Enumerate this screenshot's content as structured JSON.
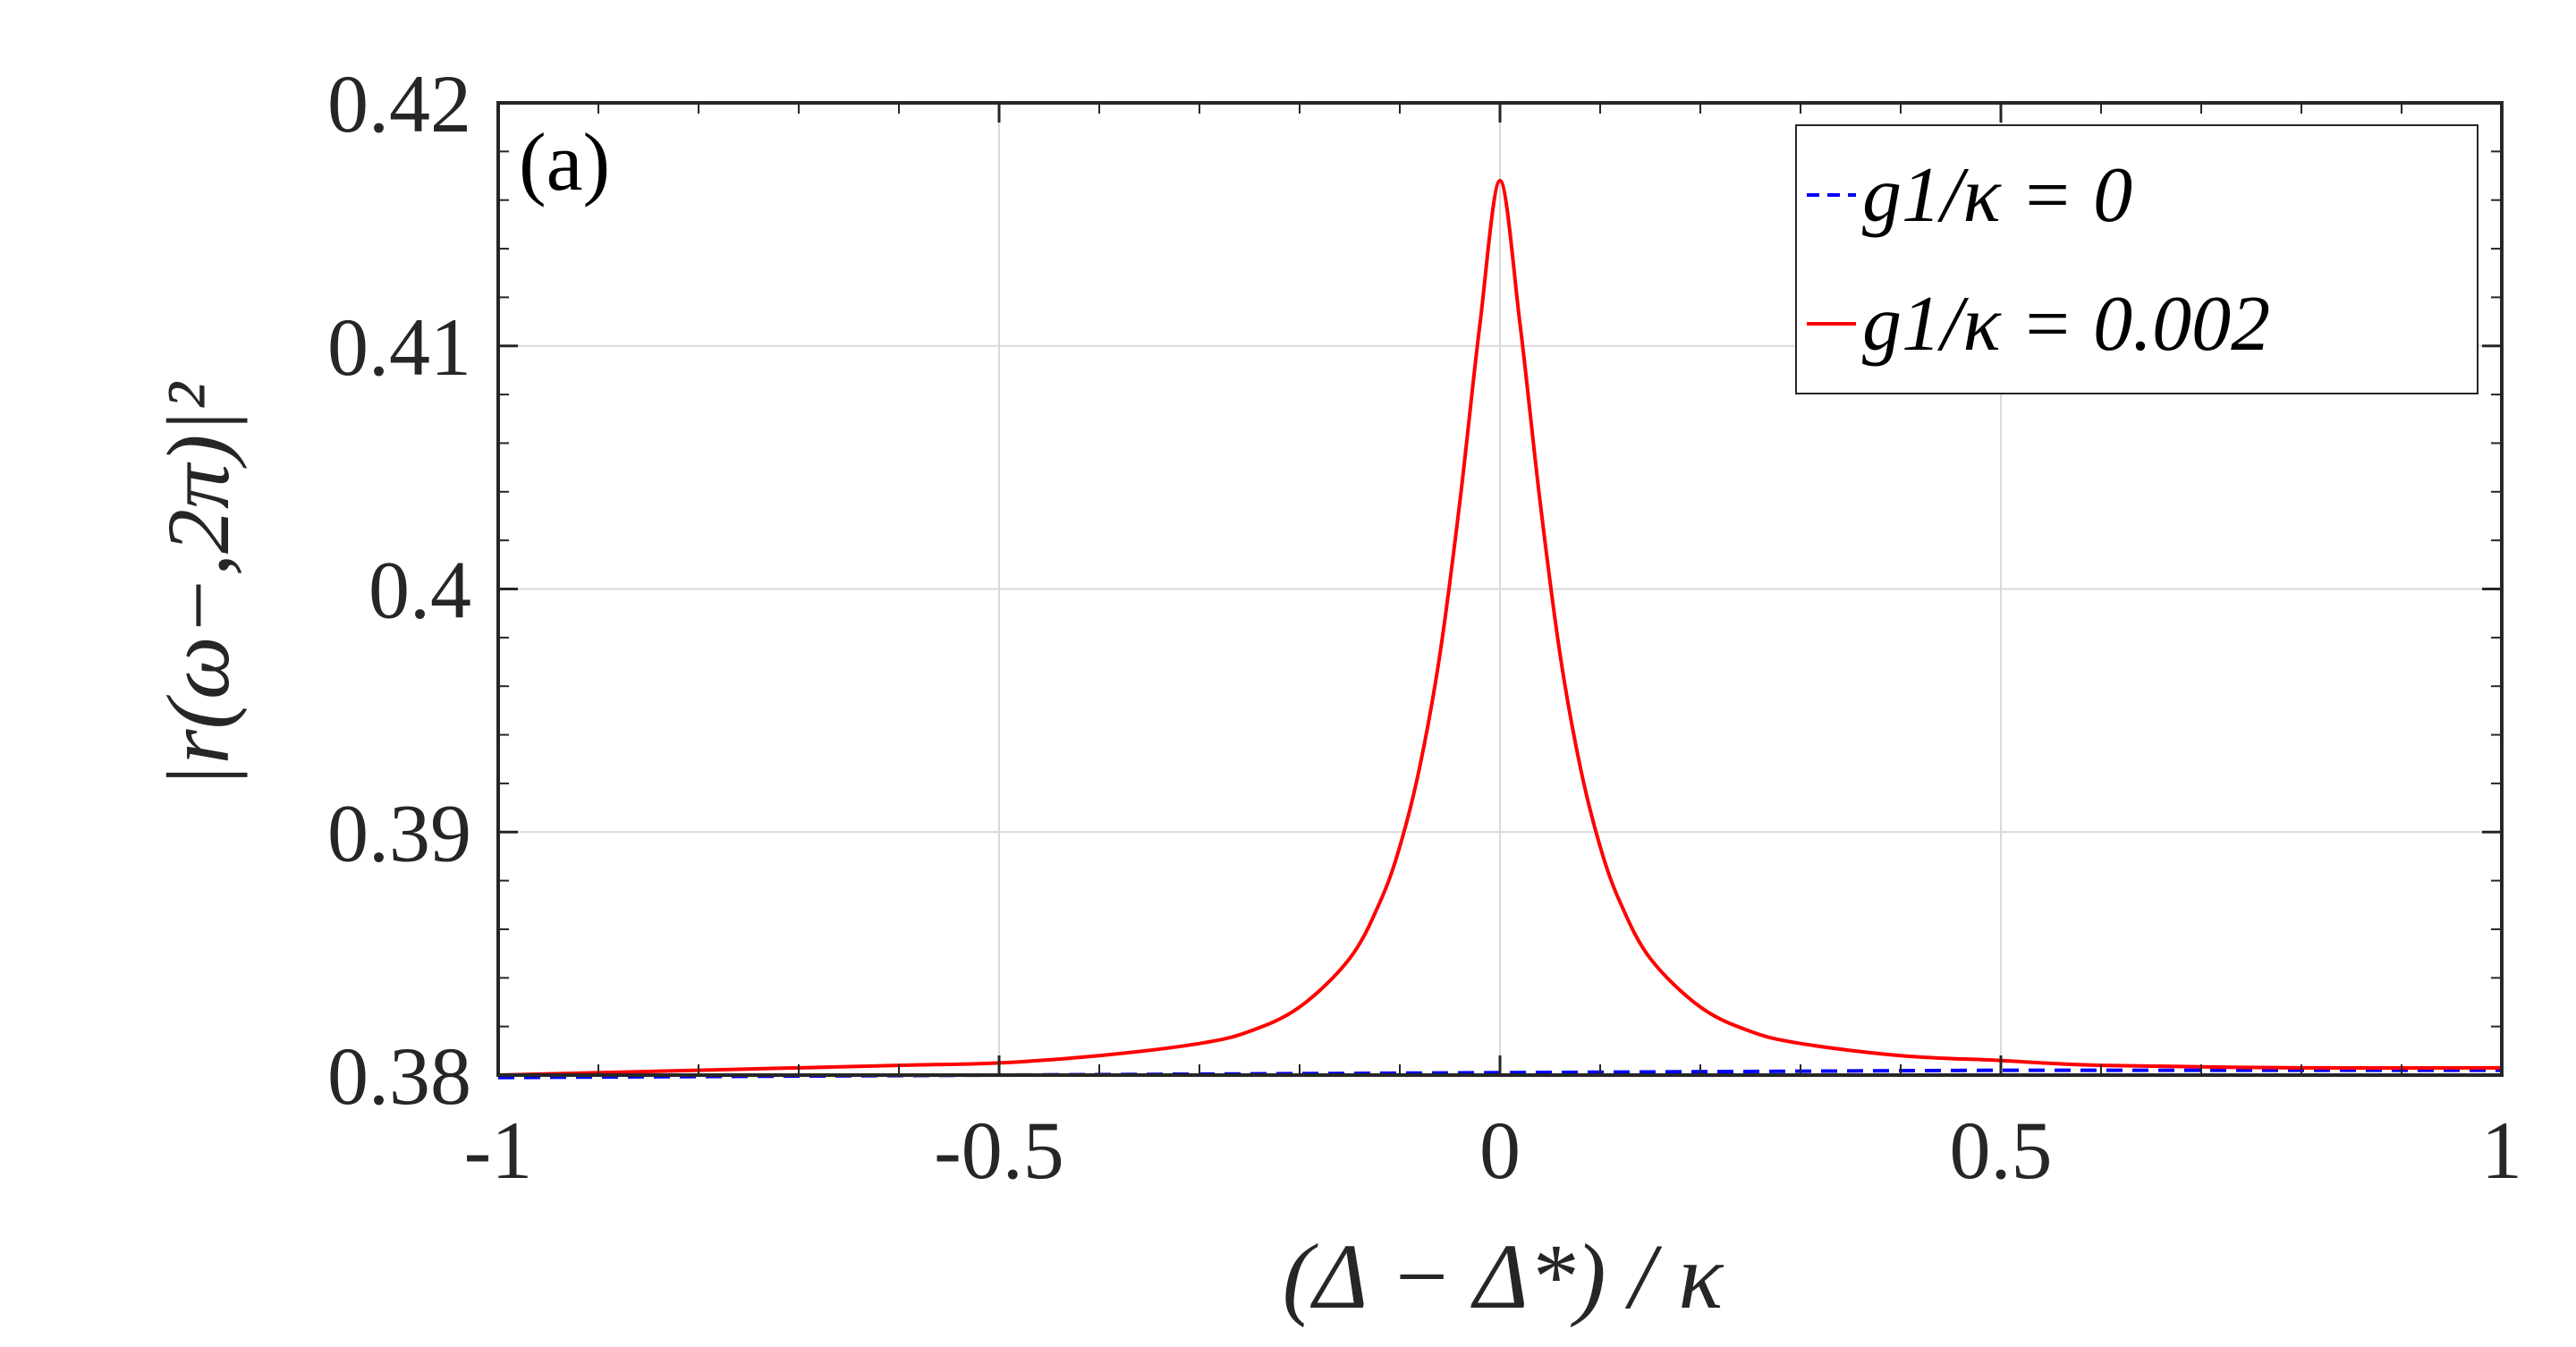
{
  "chart_data": {
    "type": "line",
    "panel_label": "(a)",
    "xlabel": "(Δ − Δ*) / κ",
    "ylabel": "|r(ω−,2π)|²",
    "xlim": [
      -1,
      1
    ],
    "ylim": [
      0.38,
      0.42
    ],
    "x_ticks": [
      -1,
      -0.5,
      0,
      0.5,
      1
    ],
    "x_tick_labels": [
      "-1",
      "-0.5",
      "0",
      "0.5",
      "1"
    ],
    "y_ticks": [
      0.38,
      0.39,
      0.4,
      0.41,
      0.42
    ],
    "y_tick_labels": [
      "0.38",
      "0.39",
      "0.4",
      "0.41",
      "0.42"
    ],
    "grid": true,
    "legend_position": "top-right",
    "series": [
      {
        "name": "g1/κ = 0",
        "color": "#0000ff",
        "style": "dashed",
        "x": [
          -1,
          -0.5,
          0,
          0.5,
          1
        ],
        "y": [
          0.3799,
          0.38,
          0.3801,
          0.3802,
          0.3802
        ]
      },
      {
        "name": "g1/κ = 0.002",
        "color": "#ff0000",
        "style": "solid",
        "x": [
          -1,
          -0.8,
          -0.6,
          -0.5,
          -0.4,
          -0.3,
          -0.25,
          -0.2,
          -0.15,
          -0.12,
          -0.1,
          -0.08,
          -0.06,
          -0.04,
          -0.02,
          0,
          0.02,
          0.04,
          0.06,
          0.08,
          0.1,
          0.12,
          0.15,
          0.2,
          0.25,
          0.3,
          0.4,
          0.5,
          0.6,
          0.8,
          1
        ],
        "y": [
          0.38,
          0.3802,
          0.3804,
          0.3805,
          0.3808,
          0.3813,
          0.3818,
          0.3828,
          0.3848,
          0.3871,
          0.3894,
          0.3927,
          0.3973,
          0.4036,
          0.4109,
          0.4168,
          0.4109,
          0.4036,
          0.3973,
          0.3927,
          0.3894,
          0.3871,
          0.3848,
          0.3828,
          0.3818,
          0.3813,
          0.3808,
          0.3806,
          0.3804,
          0.3803,
          0.3803
        ]
      }
    ]
  }
}
